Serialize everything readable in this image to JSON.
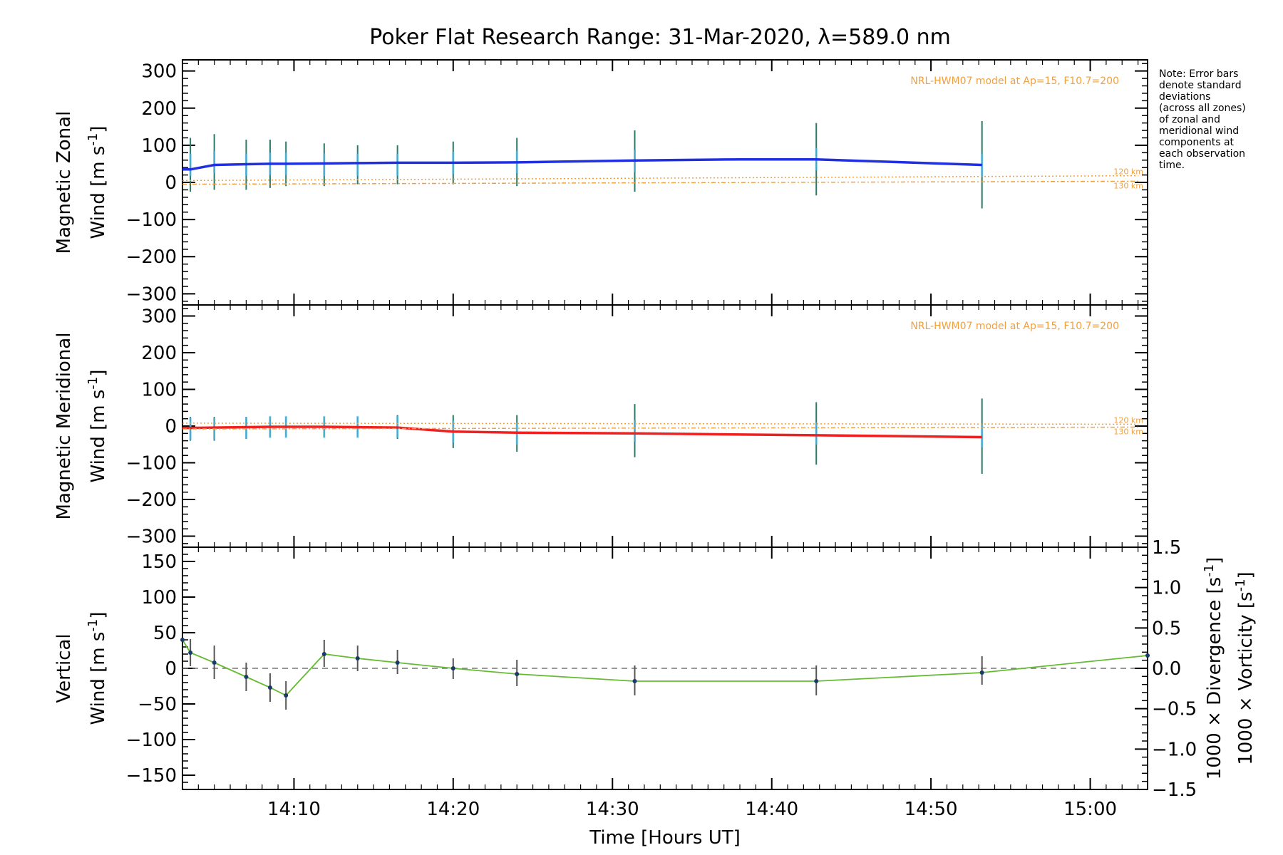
{
  "chart_data": [
    {
      "type": "line",
      "panel": "zonal",
      "title": "Poker Flat Research Range: 31-Mar-2020, λ=589.0 nm",
      "ylabel_line1": "Magnetic Zonal",
      "ylabel_line2": "Wind [m s",
      "ylabel_sup": "-1",
      "ylabel_end": "]",
      "ylim": [
        -330,
        330
      ],
      "yticks": [
        -300,
        -200,
        -100,
        0,
        100,
        200,
        300
      ],
      "ytick_labels": [
        "−300",
        "−200",
        "−100",
        "0",
        "100",
        "200",
        "300"
      ],
      "model_annotation": "NRL-HWM07 model at Ap=15, F10.7=200",
      "alt_labels": [
        "120 km",
        "130 km"
      ],
      "note": [
        "Note: Error bars",
        "denote standard",
        "deviations",
        "(across all zones)",
        "of zonal and",
        "meridional wind",
        "components at",
        "each observation",
        "time."
      ],
      "series": [
        {
          "color": "#2030e0",
          "x": [
            14.05,
            14.0583,
            14.0833,
            14.1167,
            14.1417,
            14.1583,
            14.1983,
            14.2333,
            14.275,
            14.3333,
            14.4,
            14.5233,
            14.6333,
            14.7133,
            14.8867
          ],
          "y": [
            35,
            35,
            47,
            49,
            50,
            50,
            51,
            52,
            53,
            53,
            54,
            59,
            62,
            62,
            47
          ]
        },
        {
          "color": "#f0a040",
          "name": "120 km",
          "x": [
            14.05,
            15.05
          ],
          "y": [
            5,
            18
          ]
        },
        {
          "color": "#f0a040",
          "name": "130 km",
          "x": [
            14.05,
            15.05
          ],
          "y": [
            -5,
            3
          ]
        }
      ],
      "error_bars": {
        "x": [
          14.0583,
          14.0833,
          14.1167,
          14.1417,
          14.1583,
          14.1983,
          14.2333,
          14.275,
          14.3333,
          14.4,
          14.5233,
          14.7133,
          14.8867
        ],
        "lo": [
          -25,
          -20,
          -20,
          -15,
          -10,
          -10,
          -5,
          -5,
          -5,
          -10,
          -25,
          -35,
          -70
        ],
        "hi": [
          120,
          130,
          115,
          115,
          110,
          105,
          100,
          100,
          110,
          120,
          140,
          160,
          165
        ]
      }
    },
    {
      "type": "line",
      "panel": "meridional",
      "ylabel_line1": "Magnetic Meridional",
      "ylabel_line2": "Wind [m s",
      "ylabel_sup": "-1",
      "ylabel_end": "]",
      "ylim": [
        -330,
        330
      ],
      "yticks": [
        -300,
        -200,
        -100,
        0,
        100,
        200,
        300
      ],
      "ytick_labels": [
        "−300",
        "−200",
        "−100",
        "0",
        "100",
        "200",
        "300"
      ],
      "model_annotation": "NRL-HWM07 model at Ap=15, F10.7=200",
      "alt_labels": [
        "120 km",
        "130 km"
      ],
      "series": [
        {
          "color": "#ee2020",
          "x": [
            14.05,
            14.0583,
            14.0833,
            14.1167,
            14.1417,
            14.1583,
            14.1983,
            14.2333,
            14.275,
            14.3333,
            14.4,
            14.5233,
            14.7133,
            14.8867
          ],
          "y": [
            -5,
            -5,
            -4,
            -3,
            -2,
            -2,
            -2,
            -3,
            -4,
            -15,
            -18,
            -20,
            -25,
            -30
          ]
        },
        {
          "color": "#f0a040",
          "name": "120 km",
          "x": [
            14.05,
            15.05
          ],
          "y": [
            8,
            5
          ]
        },
        {
          "color": "#f0a040",
          "name": "130 km",
          "x": [
            14.05,
            15.05
          ],
          "y": [
            -8,
            -3
          ]
        }
      ],
      "error_bars": {
        "x": [
          14.0583,
          14.0833,
          14.1167,
          14.1417,
          14.1583,
          14.1983,
          14.2333,
          14.275,
          14.3333,
          14.4,
          14.5233,
          14.7133,
          14.8867
        ],
        "lo": [
          -40,
          -40,
          -35,
          -30,
          -30,
          -30,
          -30,
          -35,
          -60,
          -70,
          -85,
          -105,
          -130
        ],
        "hi": [
          25,
          25,
          25,
          25,
          25,
          25,
          25,
          30,
          30,
          30,
          60,
          65,
          75
        ]
      }
    },
    {
      "type": "line",
      "panel": "vertical",
      "ylabel_line1": "Vertical",
      "ylabel_line2": "Wind [m s",
      "ylabel_sup": "-1",
      "ylabel_end": "]",
      "ylabel_color": "#66bb33",
      "ylim": [
        -170,
        170
      ],
      "yticks": [
        -150,
        -100,
        -50,
        0,
        50,
        100,
        150
      ],
      "ytick_labels": [
        "−150",
        "−100",
        "−50",
        "0",
        "50",
        "100",
        "150"
      ],
      "y2lim": [
        -1.5,
        1.5
      ],
      "y2ticks": [
        -1.5,
        -1.0,
        -0.5,
        0.0,
        0.5,
        1.0,
        1.5
      ],
      "y2tick_labels": [
        "−1.5",
        "−1.0",
        "−0.5",
        "0.0",
        "0.5",
        "1.0",
        "1.5"
      ],
      "y2label_div": "1000 × Divergence [s",
      "y2label_div_color": "#44aadd",
      "y2label_vor": "1000 × Vorticity [s",
      "y2label_vor_color": "#ee4488",
      "y2label_sup": "-1",
      "y2label_end": "]",
      "xlabel": "Time [Hours UT]",
      "xlim": [
        14.05,
        15.06
      ],
      "xticks": [
        14.1667,
        14.3333,
        14.5,
        14.6667,
        14.8333,
        15.0
      ],
      "xtick_labels": [
        "14:10",
        "14:20",
        "14:30",
        "14:40",
        "14:50",
        "15:00"
      ],
      "series": [
        {
          "color": "#66bb33",
          "x": [
            14.05,
            14.0583,
            14.0833,
            14.1167,
            14.1417,
            14.1583,
            14.1983,
            14.2333,
            14.275,
            14.3333,
            14.4,
            14.5233,
            14.7133,
            14.8867,
            15.06
          ],
          "y": [
            40,
            22,
            8,
            -12,
            -27,
            -38,
            20,
            14,
            8,
            0,
            -8,
            -18,
            -18,
            -6,
            18
          ]
        }
      ],
      "error_bars": {
        "x": [
          14.0583,
          14.0833,
          14.1167,
          14.1417,
          14.1583,
          14.1983,
          14.2333,
          14.275,
          14.3333,
          14.4,
          14.5233,
          14.7133,
          14.8867
        ],
        "lo": [
          3,
          -15,
          -32,
          -47,
          -58,
          2,
          -4,
          -8,
          -15,
          -25,
          -38,
          -38,
          -23
        ],
        "hi": [
          41,
          32,
          8,
          -7,
          -18,
          40,
          32,
          26,
          14,
          12,
          4,
          4,
          17
        ]
      },
      "zero_line": true
    }
  ]
}
